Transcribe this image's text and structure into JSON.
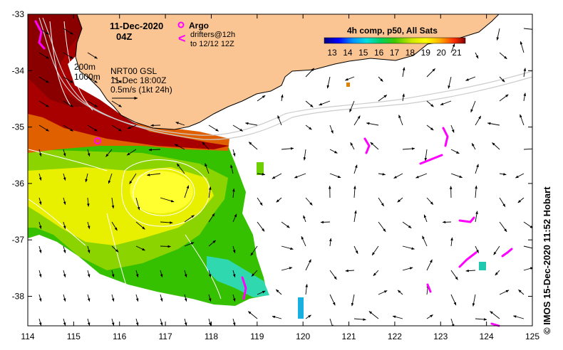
{
  "header": {
    "date": "11-Dec-2020",
    "time": "04Z"
  },
  "legend": {
    "argo_label": "Argo",
    "drifters_line1": "drifters@12h",
    "drifters_line2": "to 12/12 12Z",
    "isobath_200": "200m",
    "isobath_1000": "1000m",
    "currents_line1": "NRT00 GSL",
    "currents_line2": "11-Dec 18:00Z",
    "currents_line3": "0.5m/s (1kt 24h)"
  },
  "colorbar": {
    "title": "4h comp, p50, All Sats",
    "ticks": [
      "13",
      "14",
      "15",
      "16",
      "17",
      "18",
      "19",
      "20",
      "21"
    ],
    "colors": [
      "#000080",
      "#0000ff",
      "#0070ff",
      "#00c8ff",
      "#00e0a0",
      "#00c800",
      "#50d000",
      "#c0e000",
      "#ffff00",
      "#ffd000",
      "#ff9000",
      "#ff4000",
      "#d00000",
      "#800000"
    ]
  },
  "axes": {
    "x_ticks": [
      "114",
      "115",
      "116",
      "117",
      "118",
      "119",
      "120",
      "121",
      "122",
      "123",
      "124",
      "125"
    ],
    "y_ticks": [
      "-33",
      "-34",
      "-35",
      "-36",
      "-37",
      "-38"
    ]
  },
  "credit": "© IMOS 15-Dec-2020 11:52 Hobart",
  "colors": {
    "land": "#fbc593",
    "warm_current": "#a00000",
    "frame": "#000000"
  }
}
